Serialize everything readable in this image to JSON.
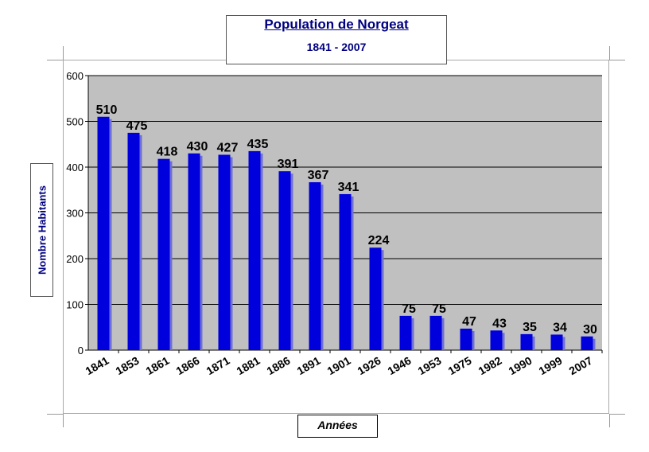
{
  "title": "Population de Norgeat",
  "subtitle": "1841 - 2007",
  "chart_data": {
    "type": "bar",
    "title": "Population de Norgeat",
    "subtitle": "1841 - 2007",
    "xlabel": "Années",
    "ylabel": "Nombre Habitants",
    "categories": [
      "1841",
      "1853",
      "1861",
      "1866",
      "1871",
      "1881",
      "1886",
      "1891",
      "1901",
      "1926",
      "1946",
      "1953",
      "1975",
      "1982",
      "1990",
      "1999",
      "2007"
    ],
    "values": [
      510,
      475,
      418,
      430,
      427,
      435,
      391,
      367,
      341,
      224,
      75,
      75,
      47,
      43,
      35,
      34,
      30
    ],
    "ylim": [
      0,
      600
    ],
    "yticks": [
      "0",
      "100",
      "200",
      "300",
      "400",
      "500",
      "600"
    ],
    "grid": true,
    "legend": "none",
    "colors": {
      "bar": "#0000dd",
      "bar_shadow": "#6f6fd8",
      "plot_bg": "#c0c0c0",
      "title": "#000080"
    }
  }
}
